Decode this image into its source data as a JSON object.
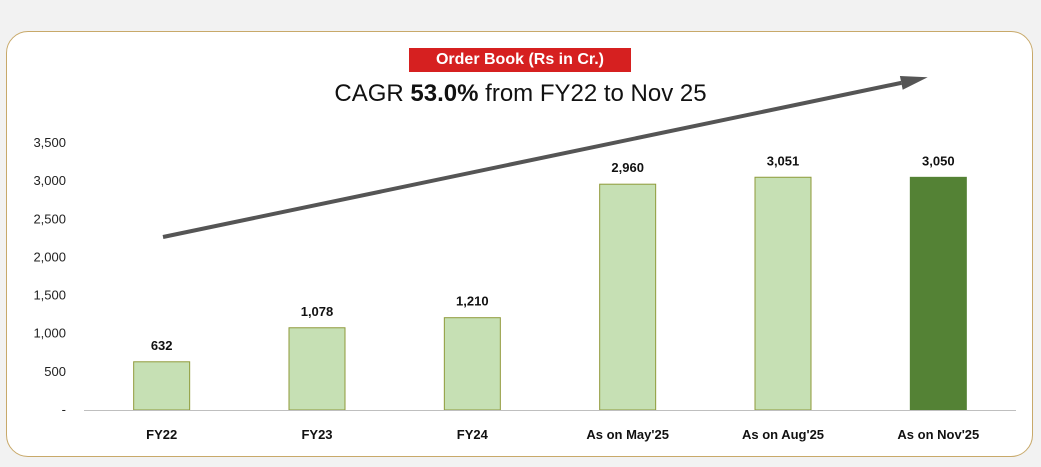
{
  "title_badge": "Order Book (Rs in Cr.)",
  "subtitle": {
    "prefix": "CAGR ",
    "value": "53.0%",
    "suffix": " from FY22 to Nov 25"
  },
  "colors": {
    "badge": "#d62020",
    "bar_light": "#c6e0b4",
    "bar_light_border": "#8f9a3a",
    "bar_highlight": "#548235",
    "arrow": "#555555",
    "panel_border": "#c8a96a"
  },
  "chart_data": {
    "type": "bar",
    "categories": [
      "FY22",
      "FY23",
      "FY24",
      "As on May'25",
      "As on Aug'25",
      "As on Nov'25"
    ],
    "values": [
      632,
      1078,
      1210,
      2960,
      3051,
      3050
    ],
    "data_labels": [
      "632",
      "1,078",
      "1,210",
      "2,960",
      "3,051",
      "3,050"
    ],
    "highlight_index": 5,
    "ylim": [
      0,
      3500
    ],
    "yticks": [
      0,
      500,
      1000,
      1500,
      2000,
      2500,
      3000,
      3500
    ],
    "ytick_labels": [
      "-",
      "500",
      "1,000",
      "1,500",
      "2,000",
      "2,500",
      "3,000",
      "3,500"
    ],
    "grid": false,
    "legend": "none",
    "trend_arrow": true
  }
}
